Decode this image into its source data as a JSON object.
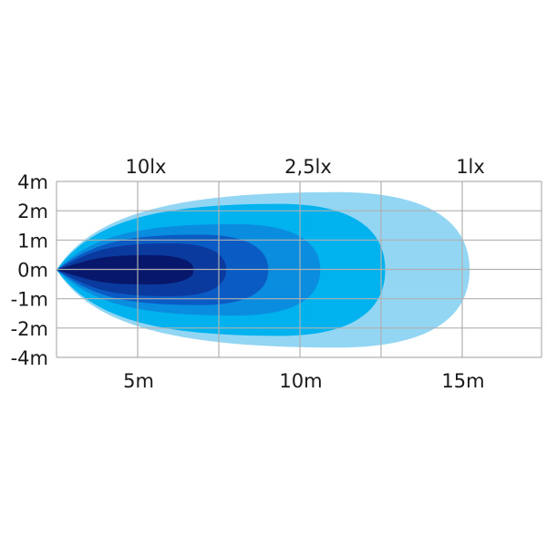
{
  "chart_data": {
    "type": "area",
    "title": "",
    "x_ticks": [
      {
        "value": 5,
        "label": "5m"
      },
      {
        "value": 10,
        "label": "10m"
      },
      {
        "value": 15,
        "label": "15m"
      }
    ],
    "y_ticks": [
      {
        "value": 4,
        "label": "4m"
      },
      {
        "value": 2,
        "label": "2m"
      },
      {
        "value": 1,
        "label": "1m"
      },
      {
        "value": 0,
        "label": "0m"
      },
      {
        "value": -1,
        "label": "-1m"
      },
      {
        "value": -2,
        "label": "-2m"
      },
      {
        "value": -4,
        "label": "-4m"
      }
    ],
    "lux_labels": [
      {
        "at_m": 5,
        "label": "10lx"
      },
      {
        "at_m": 10,
        "label": "2,5lx"
      },
      {
        "at_m": 15,
        "label": "1lx"
      }
    ],
    "grid": true,
    "contours": [
      {
        "reach_m": 15.2,
        "half_width_m": 3.3,
        "color": "#93d6f4"
      },
      {
        "reach_m": 12.6,
        "half_width_m": 2.5,
        "color": "#00b3ee"
      },
      {
        "reach_m": 10.6,
        "half_width_m": 1.56,
        "color": "#0b8ddf"
      },
      {
        "reach_m": 9.0,
        "half_width_m": 1.2,
        "color": "#0a5cc4"
      },
      {
        "reach_m": 7.7,
        "half_width_m": 0.9,
        "color": "#0a3a9e"
      },
      {
        "reach_m": 6.7,
        "half_width_m": 0.5,
        "color": "#07186c"
      }
    ],
    "grid_color": "#b0b0b0"
  }
}
